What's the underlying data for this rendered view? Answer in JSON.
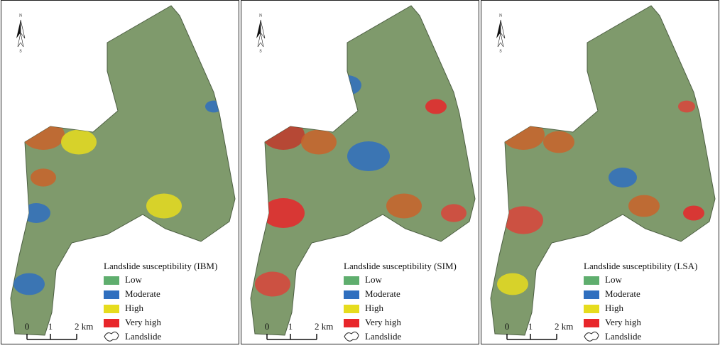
{
  "panels": [
    {
      "north": {
        "n": "N",
        "s": "S"
      },
      "legend": {
        "title": "Landslide susceptibility (IBM)",
        "items": [
          {
            "label": "Low",
            "color": "#5fae6e"
          },
          {
            "label": "Moderate",
            "color": "#2f6fbf"
          },
          {
            "label": "High",
            "color": "#e6dc1e"
          },
          {
            "label": "Very high",
            "color": "#e8262a"
          }
        ],
        "landslide": "Landslide"
      },
      "scale": {
        "labels": [
          "0",
          "1",
          "2 km"
        ]
      }
    },
    {
      "north": {
        "n": "N",
        "s": "S"
      },
      "legend": {
        "title": "Landslide susceptibility (SIM)",
        "items": [
          {
            "label": "Low",
            "color": "#5fae6e"
          },
          {
            "label": "Moderate",
            "color": "#2f6fbf"
          },
          {
            "label": "High",
            "color": "#e6dc1e"
          },
          {
            "label": "Very high",
            "color": "#e8262a"
          }
        ],
        "landslide": "Landslide"
      },
      "scale": {
        "labels": [
          "0",
          "1",
          "2 km"
        ]
      }
    },
    {
      "north": {
        "n": "N",
        "s": "S"
      },
      "legend": {
        "title": "Landslide susceptibility (LSA)",
        "items": [
          {
            "label": "Low",
            "color": "#5fae6e"
          },
          {
            "label": "Moderate",
            "color": "#2f6fbf"
          },
          {
            "label": "High",
            "color": "#e6dc1e"
          },
          {
            "label": "Very high",
            "color": "#e8262a"
          }
        ],
        "landslide": "Landslide"
      },
      "scale": {
        "labels": [
          "0",
          "1",
          "2 km"
        ]
      }
    }
  ]
}
